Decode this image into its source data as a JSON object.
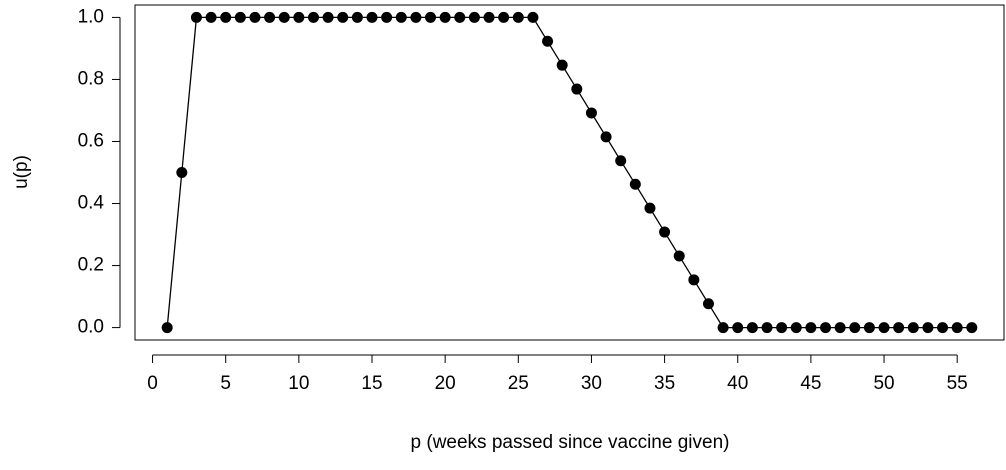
{
  "chart_data": {
    "type": "scatter",
    "x_label": "p (weeks passed since vaccine given)",
    "y_label": "u(p)",
    "x": [
      1,
      2,
      3,
      4,
      5,
      6,
      7,
      8,
      9,
      10,
      11,
      12,
      13,
      14,
      15,
      16,
      17,
      18,
      19,
      20,
      21,
      22,
      23,
      24,
      25,
      26,
      27,
      28,
      29,
      30,
      31,
      32,
      33,
      34,
      35,
      36,
      37,
      38,
      39,
      40,
      41,
      42,
      43,
      44,
      45,
      46,
      47,
      48,
      49,
      50,
      51,
      52,
      53,
      54,
      55,
      56
    ],
    "values": [
      0,
      0.5,
      1,
      1,
      1,
      1,
      1,
      1,
      1,
      1,
      1,
      1,
      1,
      1,
      1,
      1,
      1,
      1,
      1,
      1,
      1,
      1,
      1,
      1,
      1,
      1,
      0.923,
      0.846,
      0.769,
      0.692,
      0.615,
      0.538,
      0.462,
      0.385,
      0.308,
      0.231,
      0.154,
      0.077,
      0,
      0,
      0,
      0,
      0,
      0,
      0,
      0,
      0,
      0,
      0,
      0,
      0,
      0,
      0,
      0,
      0,
      0
    ],
    "color": "#000000",
    "xlim": [
      -1.2,
      58.2
    ],
    "ylim": [
      -0.04,
      1.04
    ],
    "xticks": [
      0,
      5,
      10,
      15,
      20,
      25,
      30,
      35,
      40,
      45,
      50,
      55
    ],
    "yticks": [
      {
        "value": 0,
        "label": "0.0"
      },
      {
        "value": 0.2,
        "label": "0.2"
      },
      {
        "value": 0.4,
        "label": "0.4"
      },
      {
        "value": 0.6,
        "label": "0.6"
      },
      {
        "value": 0.8,
        "label": "0.8"
      },
      {
        "value": 1,
        "label": "1.0"
      }
    ]
  }
}
